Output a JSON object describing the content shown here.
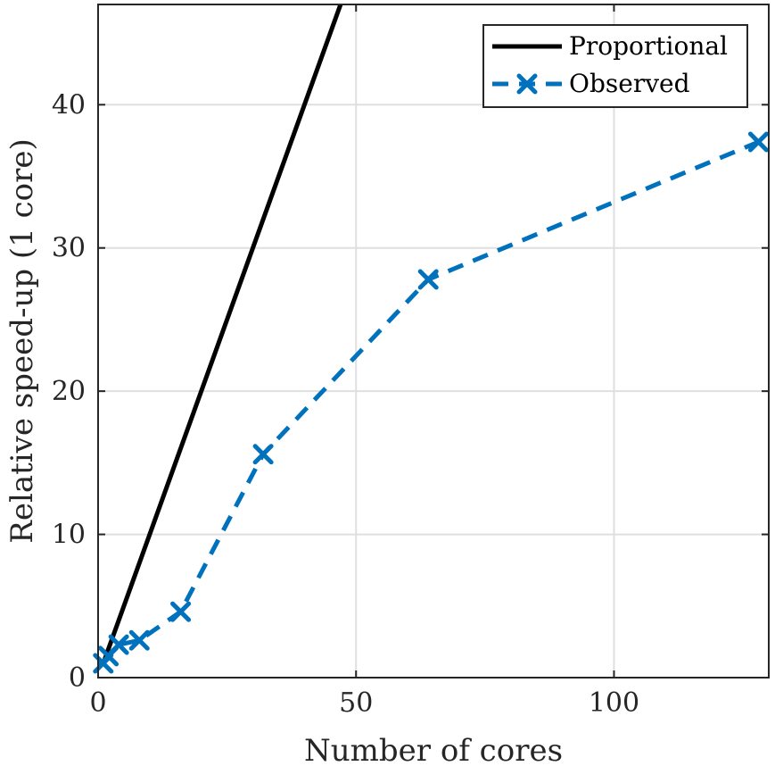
{
  "chart_data": {
    "type": "line",
    "title": "",
    "xlabel": "Number of cores",
    "ylabel": "Relative speed-up (1 core)",
    "xlim": [
      0,
      130
    ],
    "ylim": [
      0,
      47
    ],
    "xticks": [
      0,
      50,
      100
    ],
    "yticks": [
      0,
      10,
      20,
      30,
      40
    ],
    "grid": true,
    "legend_position": "top-right",
    "series": [
      {
        "name": "Proportional",
        "style": "solid",
        "marker": "none",
        "color": "#000000",
        "x": [
          1,
          47
        ],
        "y": [
          1,
          47
        ]
      },
      {
        "name": "Observed",
        "style": "dashed",
        "marker": "x",
        "color": "#0072BD",
        "x": [
          1,
          2,
          4,
          8,
          16,
          32,
          64,
          128
        ],
        "y": [
          1.0,
          1.5,
          2.3,
          2.6,
          4.6,
          15.6,
          27.8,
          37.4
        ]
      }
    ]
  }
}
